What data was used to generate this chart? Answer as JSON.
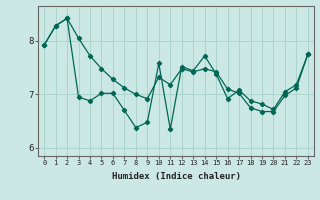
{
  "xlabel": "Humidex (Indice chaleur)",
  "background_color": "#cce8e4",
  "grid_color": "#aad4cc",
  "line_color": "#006655",
  "ylim": [
    5.85,
    8.65
  ],
  "xlim": [
    -0.5,
    23.5
  ],
  "yticks": [
    6,
    7,
    8
  ],
  "xticks": [
    0,
    1,
    2,
    3,
    4,
    5,
    6,
    7,
    8,
    9,
    10,
    11,
    12,
    13,
    14,
    15,
    16,
    17,
    18,
    19,
    20,
    21,
    22,
    23
  ],
  "line1_x": [
    0,
    1,
    2,
    3,
    4,
    5,
    6,
    7,
    8,
    9,
    10,
    11,
    12,
    13,
    14,
    15,
    16,
    17,
    18,
    19,
    20,
    21,
    22,
    23
  ],
  "line1_y": [
    7.92,
    8.28,
    8.42,
    6.95,
    6.88,
    7.02,
    7.02,
    6.7,
    6.38,
    6.48,
    7.58,
    6.35,
    7.52,
    7.44,
    7.72,
    7.38,
    6.92,
    7.08,
    6.88,
    6.82,
    6.72,
    7.05,
    7.18,
    7.75
  ],
  "line2_x": [
    0,
    1,
    2,
    3,
    4,
    5,
    6,
    7,
    8,
    9,
    10,
    11,
    12,
    13,
    14,
    15,
    16,
    17,
    18,
    19,
    20,
    21,
    22,
    23
  ],
  "line2_y": [
    7.92,
    8.28,
    8.42,
    8.05,
    7.72,
    7.48,
    7.28,
    7.12,
    7.0,
    6.92,
    7.32,
    7.18,
    7.48,
    7.42,
    7.48,
    7.42,
    7.1,
    7.02,
    6.75,
    6.68,
    6.68,
    6.98,
    7.12,
    7.75
  ]
}
